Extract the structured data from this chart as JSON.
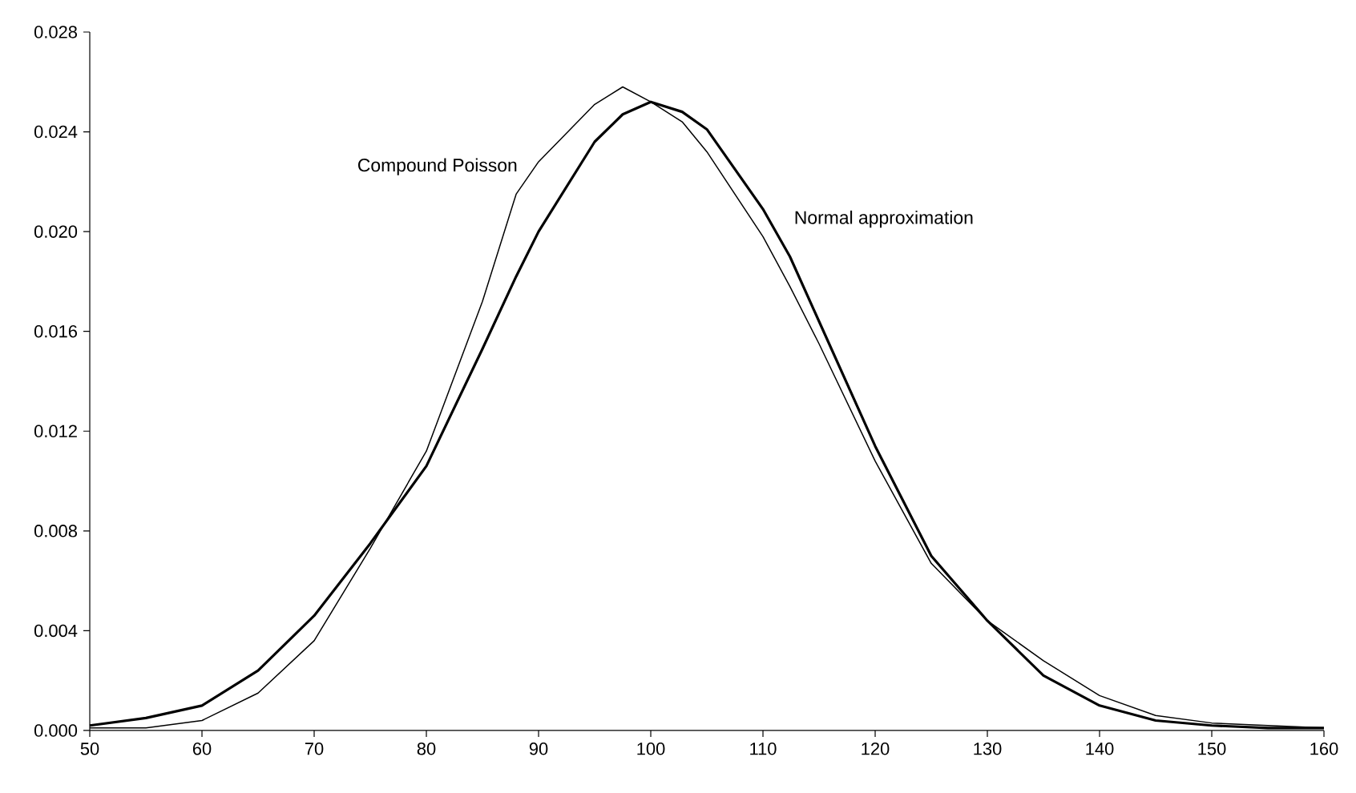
{
  "chart_data": {
    "type": "line",
    "x": [
      50,
      55,
      60,
      65,
      70,
      75,
      80,
      85,
      88,
      90,
      95,
      97.5,
      100,
      102.8,
      105,
      110,
      112.4,
      115,
      120,
      125,
      130,
      135,
      140,
      145,
      150,
      155,
      160
    ],
    "series": [
      {
        "name": "Compound Poisson",
        "color": "#000000",
        "values": [
          0.0001,
          0.0001,
          0.0004,
          0.0015,
          0.0036,
          0.0073,
          0.0112,
          0.0172,
          0.0215,
          0.0228,
          0.0251,
          0.0258,
          0.0252,
          0.0244,
          0.0232,
          0.0198,
          0.0178,
          0.0155,
          0.0108,
          0.0067,
          0.0044,
          0.0028,
          0.0014,
          0.0006,
          0.0003,
          0.0002,
          0.0001
        ]
      },
      {
        "name": "Normal approximation",
        "color": "#000000",
        "values": [
          0.0002,
          0.0005,
          0.001,
          0.0024,
          0.0046,
          0.0075,
          0.0106,
          0.0153,
          0.0182,
          0.02,
          0.0236,
          0.0247,
          0.0252,
          0.0248,
          0.0241,
          0.0209,
          0.019,
          0.0164,
          0.0114,
          0.007,
          0.0044,
          0.0022,
          0.001,
          0.0004,
          0.0002,
          0.0001,
          0.0001
        ]
      }
    ],
    "xlim": [
      50,
      160
    ],
    "xticks": [
      50,
      60,
      70,
      80,
      90,
      100,
      110,
      120,
      130,
      140,
      150,
      160
    ],
    "ylim": [
      0,
      0.028
    ],
    "yticks": [
      {
        "value": 0,
        "label": "0.000"
      },
      {
        "value": 0.004,
        "label": "0.004"
      },
      {
        "value": 0.008,
        "label": "0.008"
      },
      {
        "value": 0.012,
        "label": "0.012"
      },
      {
        "value": 0.016,
        "label": "0.016"
      },
      {
        "value": 0.02,
        "label": "0.020"
      },
      {
        "value": 0.024,
        "label": "0.024"
      },
      {
        "value": 0.028,
        "label": "0.028"
      }
    ],
    "grid": false,
    "legend": false,
    "marker": "none",
    "line_style": "solid"
  }
}
